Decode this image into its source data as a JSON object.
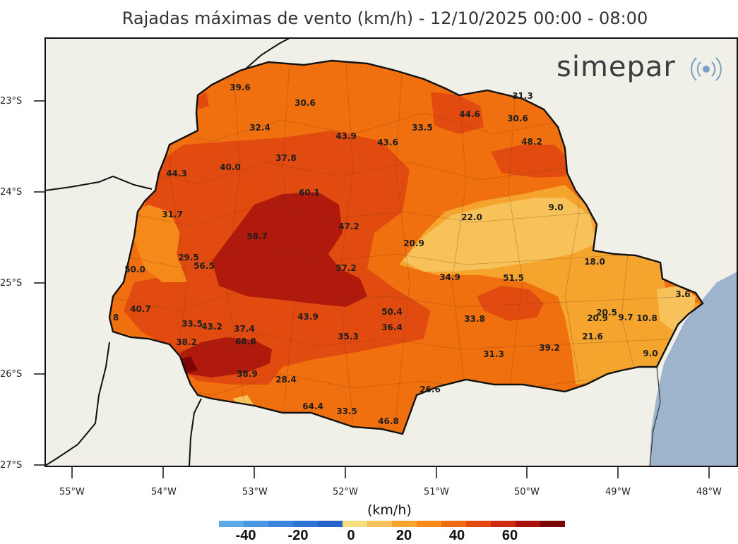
{
  "title": "Rajadas máximas de vento (km/h) - 12/10/2025 00:00 - 08:00",
  "logo": {
    "text": "simepar"
  },
  "axes": {
    "lat_ticks": [
      "23°S",
      "24°S",
      "25°S",
      "26°S",
      "27°S"
    ],
    "lon_ticks": [
      "55°W",
      "54°W",
      "53°W",
      "52°W",
      "51°W",
      "50°W",
      "49°W",
      "48°W"
    ]
  },
  "colorbar": {
    "unit": "(km/h)",
    "tick_labels": [
      "-40",
      "-20",
      "0",
      "20",
      "40",
      "60"
    ],
    "colors": [
      "#5aaae8",
      "#4a98e2",
      "#3b86dc",
      "#2f74d4",
      "#2563cb",
      "#f4df80",
      "#f7c25a",
      "#f5a52e",
      "#f58a1a",
      "#ef6a10",
      "#e4480e",
      "#cf2a10",
      "#a71209",
      "#7c0505"
    ]
  },
  "values": [
    {
      "label": "39.6"
    },
    {
      "label": "30.6"
    },
    {
      "label": "31.3"
    },
    {
      "label": "44.6"
    },
    {
      "label": "30.6"
    },
    {
      "label": "32.4"
    },
    {
      "label": "33.5"
    },
    {
      "label": "43.9"
    },
    {
      "label": "43.6"
    },
    {
      "label": "48.2"
    },
    {
      "label": "37.8"
    },
    {
      "label": "40.0"
    },
    {
      "label": "44.3"
    },
    {
      "label": "60.1"
    },
    {
      "label": "9.0"
    },
    {
      "label": "22.0"
    },
    {
      "label": "31.7"
    },
    {
      "label": "47.2"
    },
    {
      "label": "58.7"
    },
    {
      "label": "20.9"
    },
    {
      "label": "18.0"
    },
    {
      "label": "29.5"
    },
    {
      "label": "56.5"
    },
    {
      "label": "50.0"
    },
    {
      "label": "57.2"
    },
    {
      "label": "34.9"
    },
    {
      "label": "51.5"
    },
    {
      "label": "3.6"
    },
    {
      "label": "40.7"
    },
    {
      "label": "50.4"
    },
    {
      "label": "20.5"
    },
    {
      "label": "43.9"
    },
    {
      "label": "33.8"
    },
    {
      "label": "20.9"
    },
    {
      "label": "9.7"
    },
    {
      "label": "10.8"
    },
    {
      "label": "33.5"
    },
    {
      "label": "43.2"
    },
    {
      "label": "37.4"
    },
    {
      "label": "36.4"
    },
    {
      "label": "21.6"
    },
    {
      "label": "35.3"
    },
    {
      "label": "68.8"
    },
    {
      "label": "38.2"
    },
    {
      "label": "39.2"
    },
    {
      "label": "31.3"
    },
    {
      "label": "9.0"
    },
    {
      "label": "38.9"
    },
    {
      "label": "28.4"
    },
    {
      "label": "26.6"
    },
    {
      "label": "64.4"
    },
    {
      "label": "33.5"
    },
    {
      "label": "46.8"
    },
    {
      "label": "8"
    }
  ]
}
